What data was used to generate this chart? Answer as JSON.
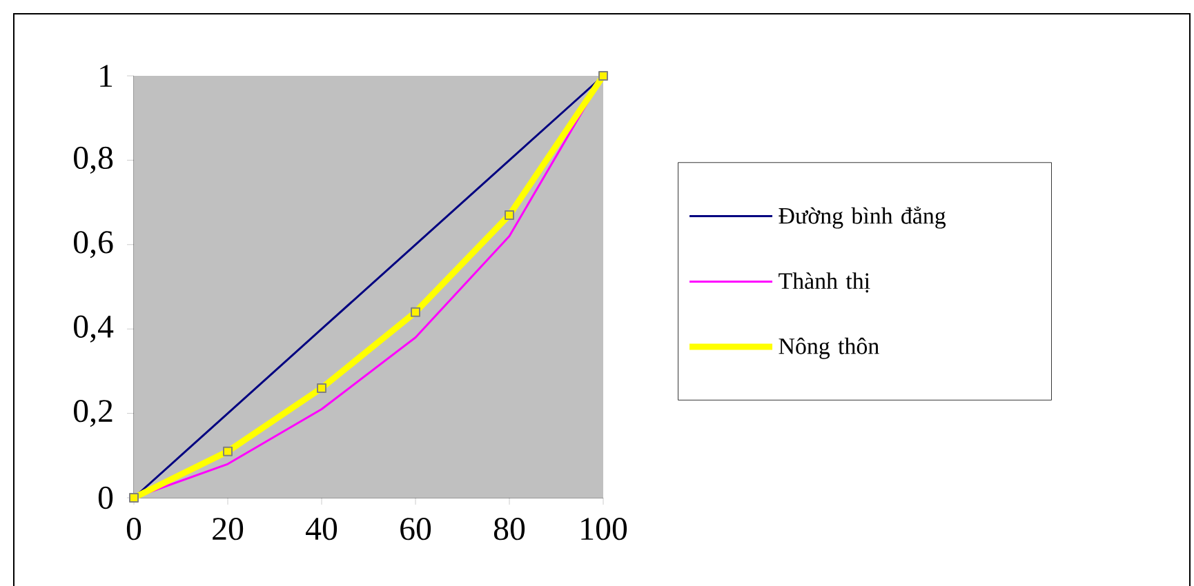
{
  "chart_data": {
    "type": "line",
    "x": [
      0,
      20,
      40,
      60,
      80,
      100
    ],
    "xlim": [
      0,
      100
    ],
    "xticks": [
      0,
      20,
      40,
      60,
      80,
      100
    ],
    "ylim": [
      0,
      1
    ],
    "yticks": [
      0,
      {
        "value": 0.2,
        "label": "0,2"
      },
      {
        "value": 0.4,
        "label": "0,4"
      },
      {
        "value": 0.6,
        "label": "0,6"
      },
      {
        "value": 0.8,
        "label": "0,8"
      },
      1
    ],
    "legend": "right",
    "grid": false,
    "series": [
      {
        "name": "Đường bình đẳng",
        "color": "#000080",
        "values": [
          0,
          0.2,
          0.4,
          0.6,
          0.8,
          1
        ]
      },
      {
        "name": "Thành thị",
        "color": "#ff00ff",
        "values": [
          0,
          0.08,
          0.21,
          0.38,
          0.62,
          1
        ]
      },
      {
        "name": "Nông thôn",
        "color": "#ffff00",
        "marker": "square",
        "values": [
          0,
          0.11,
          0.26,
          0.44,
          0.67,
          1
        ]
      }
    ]
  }
}
